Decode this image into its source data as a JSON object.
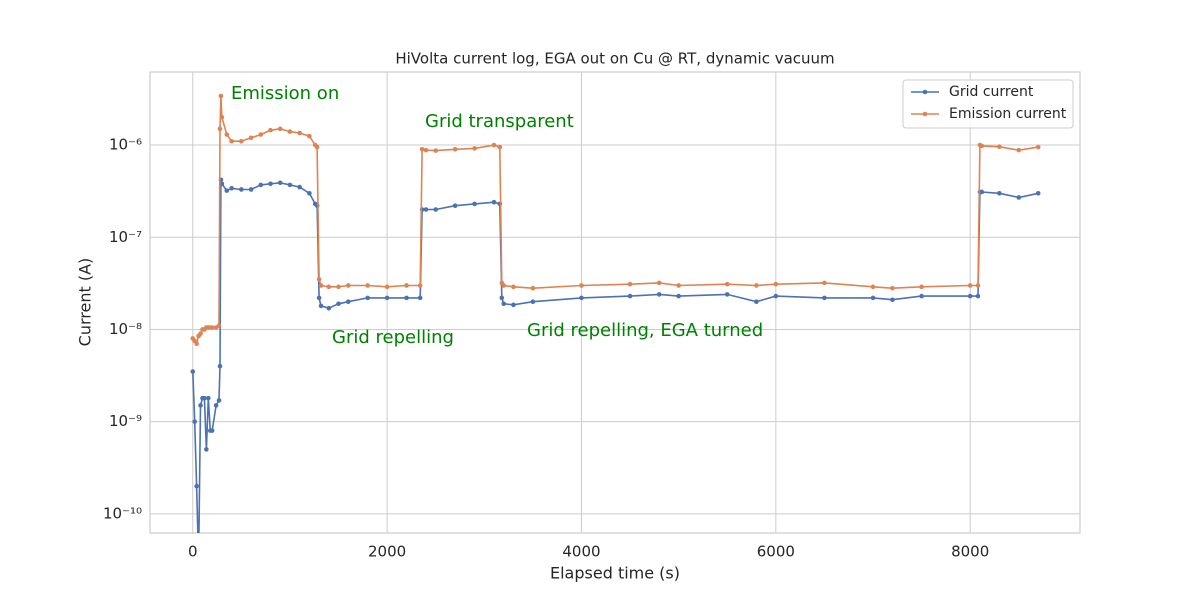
{
  "chart_data": {
    "type": "line",
    "title": "HiVolta current log, EGA out on Cu @ RT, dynamic vacuum",
    "x_label": "Elapsed time (s)",
    "y_label": "Current (A)",
    "x": [
      0,
      20,
      40,
      60,
      80,
      100,
      120,
      140,
      160,
      180,
      200,
      240,
      270,
      280,
      290,
      300,
      350,
      400,
      500,
      600,
      700,
      800,
      900,
      1000,
      1100,
      1200,
      1260,
      1280,
      1300,
      1320,
      1400,
      1500,
      1600,
      1800,
      2000,
      2200,
      2340,
      2360,
      2400,
      2500,
      2700,
      2900,
      3100,
      3160,
      3180,
      3200,
      3300,
      3500,
      4000,
      4500,
      4800,
      5000,
      5500,
      5800,
      6000,
      6500,
      7000,
      7200,
      7500,
      8000,
      8080,
      8100,
      8120,
      8300,
      8500,
      8700
    ],
    "series": [
      {
        "name": "Grid current",
        "color": "#4c72b0",
        "values": [
          3.5e-09,
          1e-09,
          2e-10,
          3e-11,
          1.5e-09,
          1.8e-09,
          1.8e-09,
          5e-10,
          1.8e-09,
          8e-10,
          8e-10,
          1.5e-09,
          1.7e-09,
          4e-09,
          4.2e-07,
          3.8e-07,
          3.2e-07,
          3.4e-07,
          3.3e-07,
          3.3e-07,
          3.7e-07,
          3.8e-07,
          3.9e-07,
          3.7e-07,
          3.5e-07,
          3e-07,
          2.3e-07,
          2.2e-07,
          2.2e-08,
          1.8e-08,
          1.7e-08,
          1.9e-08,
          2e-08,
          2.2e-08,
          2.2e-08,
          2.2e-08,
          2.2e-08,
          2e-07,
          2e-07,
          2e-07,
          2.2e-07,
          2.3e-07,
          2.4e-07,
          2.3e-07,
          2.2e-08,
          1.9e-08,
          1.85e-08,
          2e-08,
          2.2e-08,
          2.3e-08,
          2.4e-08,
          2.3e-08,
          2.4e-08,
          2e-08,
          2.3e-08,
          2.2e-08,
          2.2e-08,
          2.1e-08,
          2.3e-08,
          2.3e-08,
          2.3e-08,
          3.1e-07,
          3.1e-07,
          3e-07,
          2.7e-07,
          3e-07
        ]
      },
      {
        "name": "Emission current",
        "color": "#dd8452",
        "values": [
          8e-09,
          7.5e-09,
          7e-09,
          8.5e-09,
          9e-09,
          1e-08,
          1e-08,
          1.05e-08,
          1.05e-08,
          1.05e-08,
          1.05e-08,
          1.05e-08,
          1.1e-08,
          1.5e-06,
          3.4e-06,
          2e-06,
          1.3e-06,
          1.1e-06,
          1.1e-06,
          1.2e-06,
          1.3e-06,
          1.45e-06,
          1.5e-06,
          1.4e-06,
          1.35e-06,
          1.25e-06,
          1e-06,
          9.5e-07,
          3.5e-08,
          3e-08,
          2.9e-08,
          2.9e-08,
          3e-08,
          3e-08,
          2.9e-08,
          3e-08,
          3e-08,
          9e-07,
          8.8e-07,
          8.7e-07,
          9e-07,
          9.2e-07,
          1e-06,
          9.5e-07,
          3.2e-08,
          3e-08,
          2.9e-08,
          2.8e-08,
          3e-08,
          3.1e-08,
          3.2e-08,
          3e-08,
          3.1e-08,
          3e-08,
          3.1e-08,
          3.2e-08,
          2.9e-08,
          2.8e-08,
          2.9e-08,
          3e-08,
          3e-08,
          1e-06,
          9.8e-07,
          9.6e-07,
          8.8e-07,
          9.5e-07
        ]
      }
    ],
    "xlim": [
      -440,
      9130
    ],
    "xticks": [
      0,
      2000,
      4000,
      6000,
      8000
    ],
    "ylim": [
      6.2e-11,
      6.2e-06
    ],
    "log_y": true,
    "yticks": [
      {
        "value": 1e-10,
        "label": "10⁻¹⁰"
      },
      {
        "value": 1e-09,
        "label": "10⁻⁹"
      },
      {
        "value": 1e-08,
        "label": "10⁻⁸"
      },
      {
        "value": 1e-07,
        "label": "10⁻⁷"
      },
      {
        "value": 1e-06,
        "label": "10⁻⁶"
      }
    ],
    "grid": true,
    "legend": "upper right",
    "annotations": [
      "Emission on",
      "Grid transparent",
      "Grid repelling",
      "Grid repelling, EGA turned"
    ],
    "annotation_color": "#008000"
  }
}
